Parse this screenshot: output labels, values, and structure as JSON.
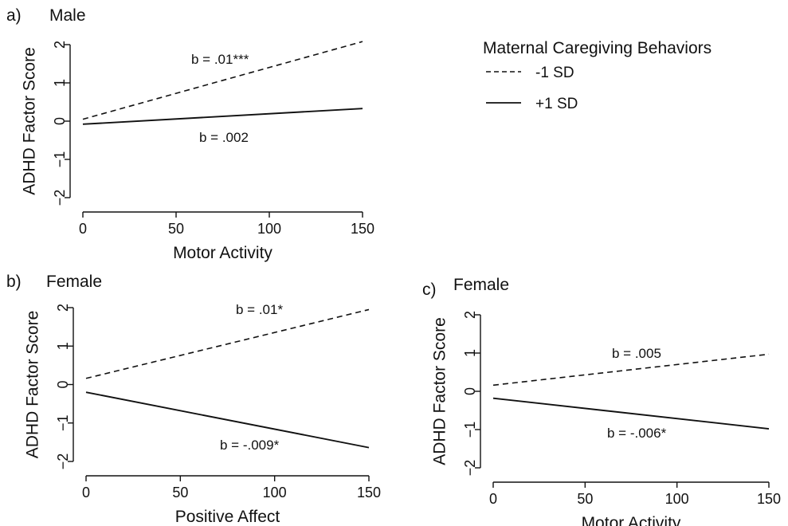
{
  "legend": {
    "title": "Maternal Caregiving Behaviors",
    "items": [
      {
        "label": "-1 SD",
        "style": "dashed"
      },
      {
        "label": "+1 SD",
        "style": "solid"
      }
    ]
  },
  "chart_data": [
    {
      "type": "line",
      "tag": "a)",
      "title": "Male",
      "xlabel": "Motor Activity",
      "ylabel": "ADHD Factor Score",
      "xlim": [
        0,
        150
      ],
      "ylim": [
        -2,
        2
      ],
      "xticks": [
        0,
        50,
        100,
        150
      ],
      "yticks": [
        -2,
        -1,
        0,
        1,
        2
      ],
      "xtick_labels": [
        "0",
        "50",
        "100",
        "150"
      ],
      "ytick_labels": [
        "−2",
        "−1",
        "0",
        "1",
        "2"
      ],
      "series": [
        {
          "name": "-1 SD",
          "style": "dashed",
          "x": [
            0,
            150
          ],
          "y": [
            0.05,
            2.08
          ],
          "annotation": "b = .01***"
        },
        {
          "name": "+1 SD",
          "style": "solid",
          "x": [
            0,
            150
          ],
          "y": [
            -0.08,
            0.33
          ],
          "annotation": "b = .002"
        }
      ]
    },
    {
      "type": "line",
      "tag": "b)",
      "title": "Female",
      "xlabel": "Positive Affect",
      "ylabel": "ADHD Factor Score",
      "xlim": [
        0,
        150
      ],
      "ylim": [
        -2,
        2
      ],
      "xticks": [
        0,
        50,
        100,
        150
      ],
      "yticks": [
        -2,
        -1,
        0,
        1,
        2
      ],
      "xtick_labels": [
        "0",
        "50",
        "100",
        "150"
      ],
      "ytick_labels": [
        "−2",
        "−1",
        "0",
        "1",
        "2"
      ],
      "series": [
        {
          "name": "-1 SD",
          "style": "dashed",
          "x": [
            0,
            150
          ],
          "y": [
            0.16,
            1.95
          ],
          "annotation": "b = .01*"
        },
        {
          "name": "+1 SD",
          "style": "solid",
          "x": [
            0,
            150
          ],
          "y": [
            -0.2,
            -1.64
          ],
          "annotation": "b = -.009*"
        }
      ]
    },
    {
      "type": "line",
      "tag": "c)",
      "title": "Female",
      "xlabel": "Motor Activity",
      "ylabel": "ADHD Factor Score",
      "xlim": [
        0,
        150
      ],
      "ylim": [
        -2,
        2
      ],
      "xticks": [
        0,
        50,
        100,
        150
      ],
      "yticks": [
        -2,
        -1,
        0,
        1,
        2
      ],
      "xtick_labels": [
        "0",
        "50",
        "100",
        "150"
      ],
      "ytick_labels": [
        "−2",
        "−1",
        "0",
        "1",
        "2"
      ],
      "series": [
        {
          "name": "-1 SD",
          "style": "dashed",
          "x": [
            0,
            150
          ],
          "y": [
            0.16,
            0.97
          ],
          "annotation": "b = .005"
        },
        {
          "name": "+1 SD",
          "style": "solid",
          "x": [
            0,
            150
          ],
          "y": [
            -0.18,
            -0.98
          ],
          "annotation": "b = -.006*"
        }
      ]
    }
  ]
}
